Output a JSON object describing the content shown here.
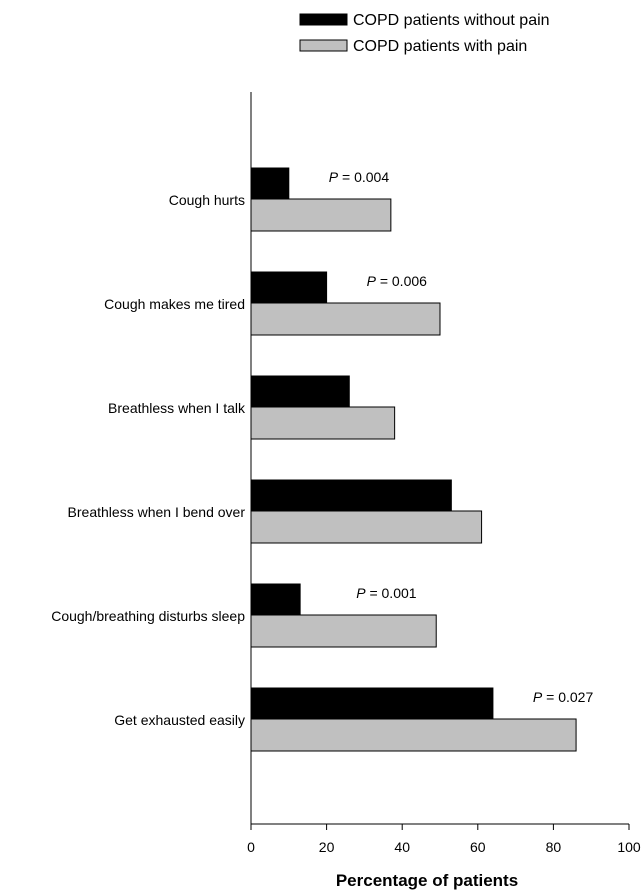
{
  "chart_data": {
    "type": "bar",
    "orientation": "horizontal",
    "xlabel": "Percentage of patients",
    "ylabel": "",
    "xlim": [
      0,
      100
    ],
    "x_ticks": [
      0,
      20,
      40,
      60,
      80,
      100
    ],
    "categories": [
      "Cough hurts",
      "Cough makes me tired",
      "Breathless when I talk",
      "Breathless when I bend over",
      "Cough/breathing disturbs sleep",
      "Get exhausted easily"
    ],
    "series": [
      {
        "name": "COPD patients without pain",
        "color": "#000000",
        "values": [
          10,
          20,
          26,
          53,
          13,
          64
        ]
      },
      {
        "name": "COPD patients with pain",
        "color": "#c0c0c0",
        "values": [
          37,
          50,
          38,
          61,
          49,
          86
        ]
      }
    ],
    "p_values": [
      {
        "category_index": 0,
        "label": "P",
        "value_text": " = 0.004"
      },
      {
        "category_index": 1,
        "label": "P",
        "value_text": " = 0.006"
      },
      {
        "category_index": 4,
        "label": "P",
        "value_text": " = 0.001"
      },
      {
        "category_index": 5,
        "label": "P",
        "value_text": " = 0.027"
      }
    ],
    "legend_position": "top-right",
    "grid": false
  }
}
